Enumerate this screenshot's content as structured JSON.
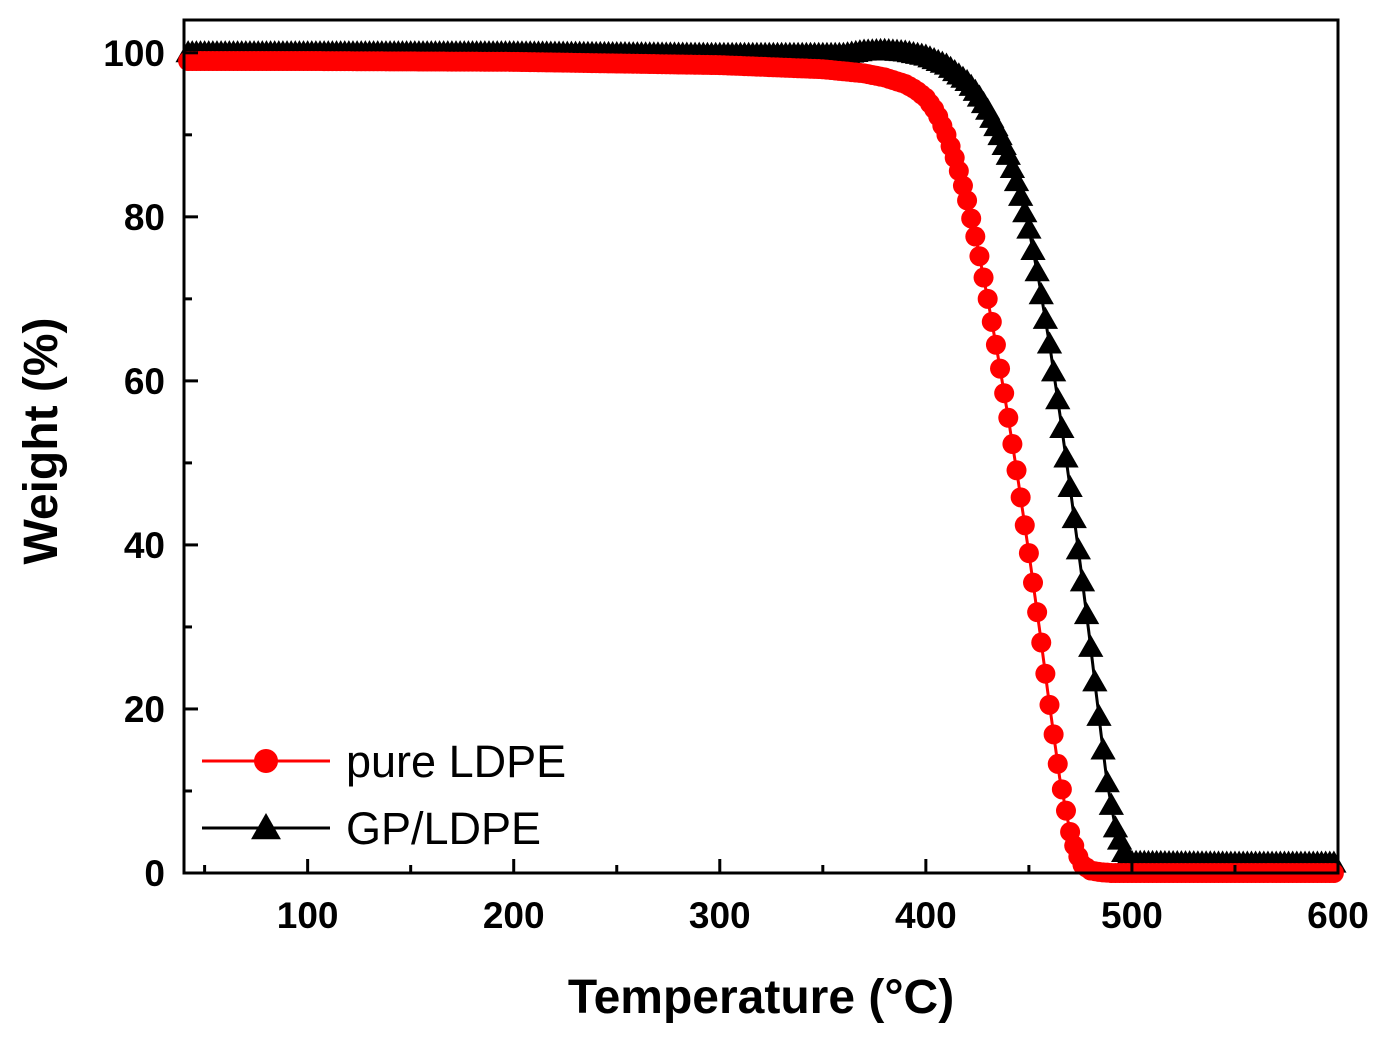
{
  "chart_data": {
    "type": "line",
    "title": "",
    "xlabel": "Temperature (°C)",
    "ylabel": "Weight (%)",
    "xlim": [
      40,
      600
    ],
    "ylim": [
      0,
      104
    ],
    "x_ticks": [
      100,
      200,
      300,
      400,
      500,
      600
    ],
    "y_ticks": [
      0,
      20,
      40,
      60,
      80,
      100
    ],
    "grid": false,
    "legend_position": "bottom-left",
    "series": [
      {
        "name": "pure LDPE",
        "color": "#ff0000",
        "marker": "circle",
        "x": [
          40,
          100,
          200,
          300,
          350,
          370,
          380,
          390,
          395,
          400,
          405,
          410,
          415,
          420,
          425,
          430,
          435,
          440,
          445,
          450,
          455,
          460,
          465,
          470,
          473,
          476,
          480,
          485,
          490,
          500,
          550,
          600
        ],
        "y": [
          99.0,
          99.0,
          98.9,
          98.5,
          98.0,
          97.5,
          97.0,
          96.2,
          95.5,
          94.5,
          92.8,
          90.0,
          86.5,
          82.0,
          76.5,
          70.0,
          63.0,
          55.5,
          47.5,
          39.0,
          30.0,
          20.5,
          11.5,
          5.0,
          2.5,
          1.0,
          0.3,
          0.1,
          0.0,
          0.0,
          0.0,
          0.0
        ]
      },
      {
        "name": "GP/LDPE",
        "color": "#000000",
        "marker": "triangle",
        "x": [
          40,
          100,
          200,
          300,
          360,
          370,
          380,
          390,
          400,
          410,
          420,
          425,
          430,
          435,
          440,
          445,
          450,
          455,
          460,
          465,
          470,
          475,
          480,
          485,
          488,
          492,
          496,
          500,
          550,
          600
        ],
        "y": [
          100.0,
          100.0,
          100.0,
          99.8,
          99.8,
          100.2,
          100.3,
          100.1,
          99.6,
          98.5,
          96.5,
          95.0,
          93.0,
          90.5,
          87.5,
          83.5,
          78.5,
          72.0,
          64.5,
          56.0,
          47.0,
          37.5,
          27.5,
          17.0,
          11.0,
          5.5,
          2.5,
          1.3,
          1.2,
          1.2
        ]
      }
    ]
  }
}
